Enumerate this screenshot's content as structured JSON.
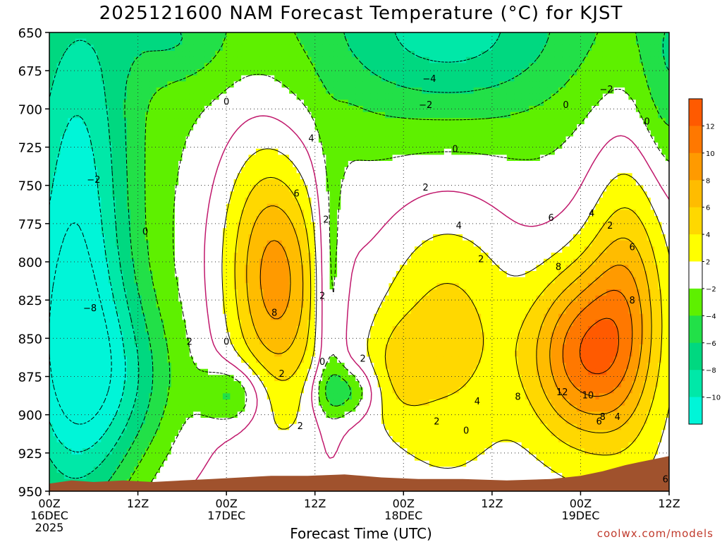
{
  "title": "2025121600 NAM Forecast Temperature (°C) for KJST",
  "xlabel": "Forecast Time (UTC)",
  "credit": "coolwx.com/models",
  "chart_data": {
    "type": "heatmap",
    "title": "2025121600 NAM Forecast Temperature (°C) for KJST",
    "xlabel": "Forecast Time (UTC)",
    "ylabel": "",
    "x_ticks": [
      {
        "hour": 0,
        "lines": [
          "00Z",
          "16DEC",
          "2025"
        ]
      },
      {
        "hour": 12,
        "lines": [
          "12Z"
        ]
      },
      {
        "hour": 24,
        "lines": [
          "00Z",
          "17DEC"
        ]
      },
      {
        "hour": 36,
        "lines": [
          "12Z"
        ]
      },
      {
        "hour": 48,
        "lines": [
          "00Z",
          "18DEC"
        ]
      },
      {
        "hour": 60,
        "lines": [
          "12Z"
        ]
      },
      {
        "hour": 72,
        "lines": [
          "00Z",
          "19DEC"
        ]
      },
      {
        "hour": 84,
        "lines": [
          "12Z"
        ]
      }
    ],
    "xlim": [
      0,
      84
    ],
    "y_ticks": [
      650,
      675,
      700,
      725,
      750,
      775,
      800,
      825,
      850,
      875,
      900,
      925,
      950
    ],
    "ylim": [
      650,
      950
    ],
    "y_inverted": true,
    "grid": true,
    "colorbar": {
      "levels": [
        -12,
        -10,
        -8,
        -6,
        -4,
        -2,
        2,
        4,
        6,
        8,
        10,
        12,
        14
      ],
      "tick_labels": [
        "12",
        "10",
        "8",
        "6",
        "4",
        "2",
        "−2",
        "−4",
        "−6",
        "−8",
        "−10"
      ],
      "colors": [
        "#00f5d8",
        "#00e8a8",
        "#00d880",
        "#22e048",
        "#5ef000",
        "#ffffff",
        "#ffff00",
        "#ffd800",
        "#ffbc00",
        "#ff9a00",
        "#ff7800",
        "#ff5a00"
      ]
    },
    "contour_labels": [
      {
        "text": "0",
        "hour": 24.0,
        "p": 695
      },
      {
        "text": "4",
        "hour": 35.5,
        "p": 719
      },
      {
        "text": "6",
        "hour": 33.5,
        "p": 755
      },
      {
        "text": "2",
        "hour": 37.5,
        "p": 772
      },
      {
        "text": "8",
        "hour": 30.5,
        "p": 833
      },
      {
        "text": "2",
        "hour": 37.0,
        "p": 822
      },
      {
        "text": "2",
        "hour": 19.0,
        "p": 852
      },
      {
        "text": "0",
        "hour": 24.0,
        "p": 852
      },
      {
        "text": "2",
        "hour": 31.5,
        "p": 873
      },
      {
        "text": "2",
        "hour": 34.0,
        "p": 907
      },
      {
        "text": "0",
        "hour": 37.0,
        "p": 865
      },
      {
        "text": "2",
        "hour": 42.5,
        "p": 863
      },
      {
        "text": "0",
        "hour": 13.0,
        "p": 780
      },
      {
        "text": "−2",
        "hour": 6.0,
        "p": 746
      },
      {
        "text": "−8",
        "hour": 5.5,
        "p": 830
      },
      {
        "text": "−4",
        "hour": 51.5,
        "p": 680
      },
      {
        "text": "−2",
        "hour": 51.0,
        "p": 697
      },
      {
        "text": "0",
        "hour": 55.0,
        "p": 726
      },
      {
        "text": "2",
        "hour": 51.0,
        "p": 751
      },
      {
        "text": "4",
        "hour": 55.5,
        "p": 776
      },
      {
        "text": "2",
        "hour": 58.5,
        "p": 798
      },
      {
        "text": "0",
        "hour": 70.0,
        "p": 697
      },
      {
        "text": "−2",
        "hour": 75.5,
        "p": 687
      },
      {
        "text": "0",
        "hour": 81.0,
        "p": 708
      },
      {
        "text": "4",
        "hour": 73.5,
        "p": 768
      },
      {
        "text": "2",
        "hour": 76.0,
        "p": 776
      },
      {
        "text": "6",
        "hour": 68.0,
        "p": 771
      },
      {
        "text": "8",
        "hour": 69.0,
        "p": 803
      },
      {
        "text": "6",
        "hour": 79.0,
        "p": 790
      },
      {
        "text": "8",
        "hour": 79.0,
        "p": 825
      },
      {
        "text": "12",
        "hour": 69.5,
        "p": 885
      },
      {
        "text": "10",
        "hour": 73.0,
        "p": 887
      },
      {
        "text": "8",
        "hour": 63.5,
        "p": 888
      },
      {
        "text": "6",
        "hour": 74.5,
        "p": 904
      },
      {
        "text": "8",
        "hour": 75.0,
        "p": 901
      },
      {
        "text": "4",
        "hour": 77.0,
        "p": 901
      },
      {
        "text": "6",
        "hour": 83.5,
        "p": 942
      },
      {
        "text": "4",
        "hour": 58.0,
        "p": 891
      },
      {
        "text": "2",
        "hour": 52.5,
        "p": 904
      },
      {
        "text": "0",
        "hour": 56.5,
        "p": 910
      }
    ]
  }
}
